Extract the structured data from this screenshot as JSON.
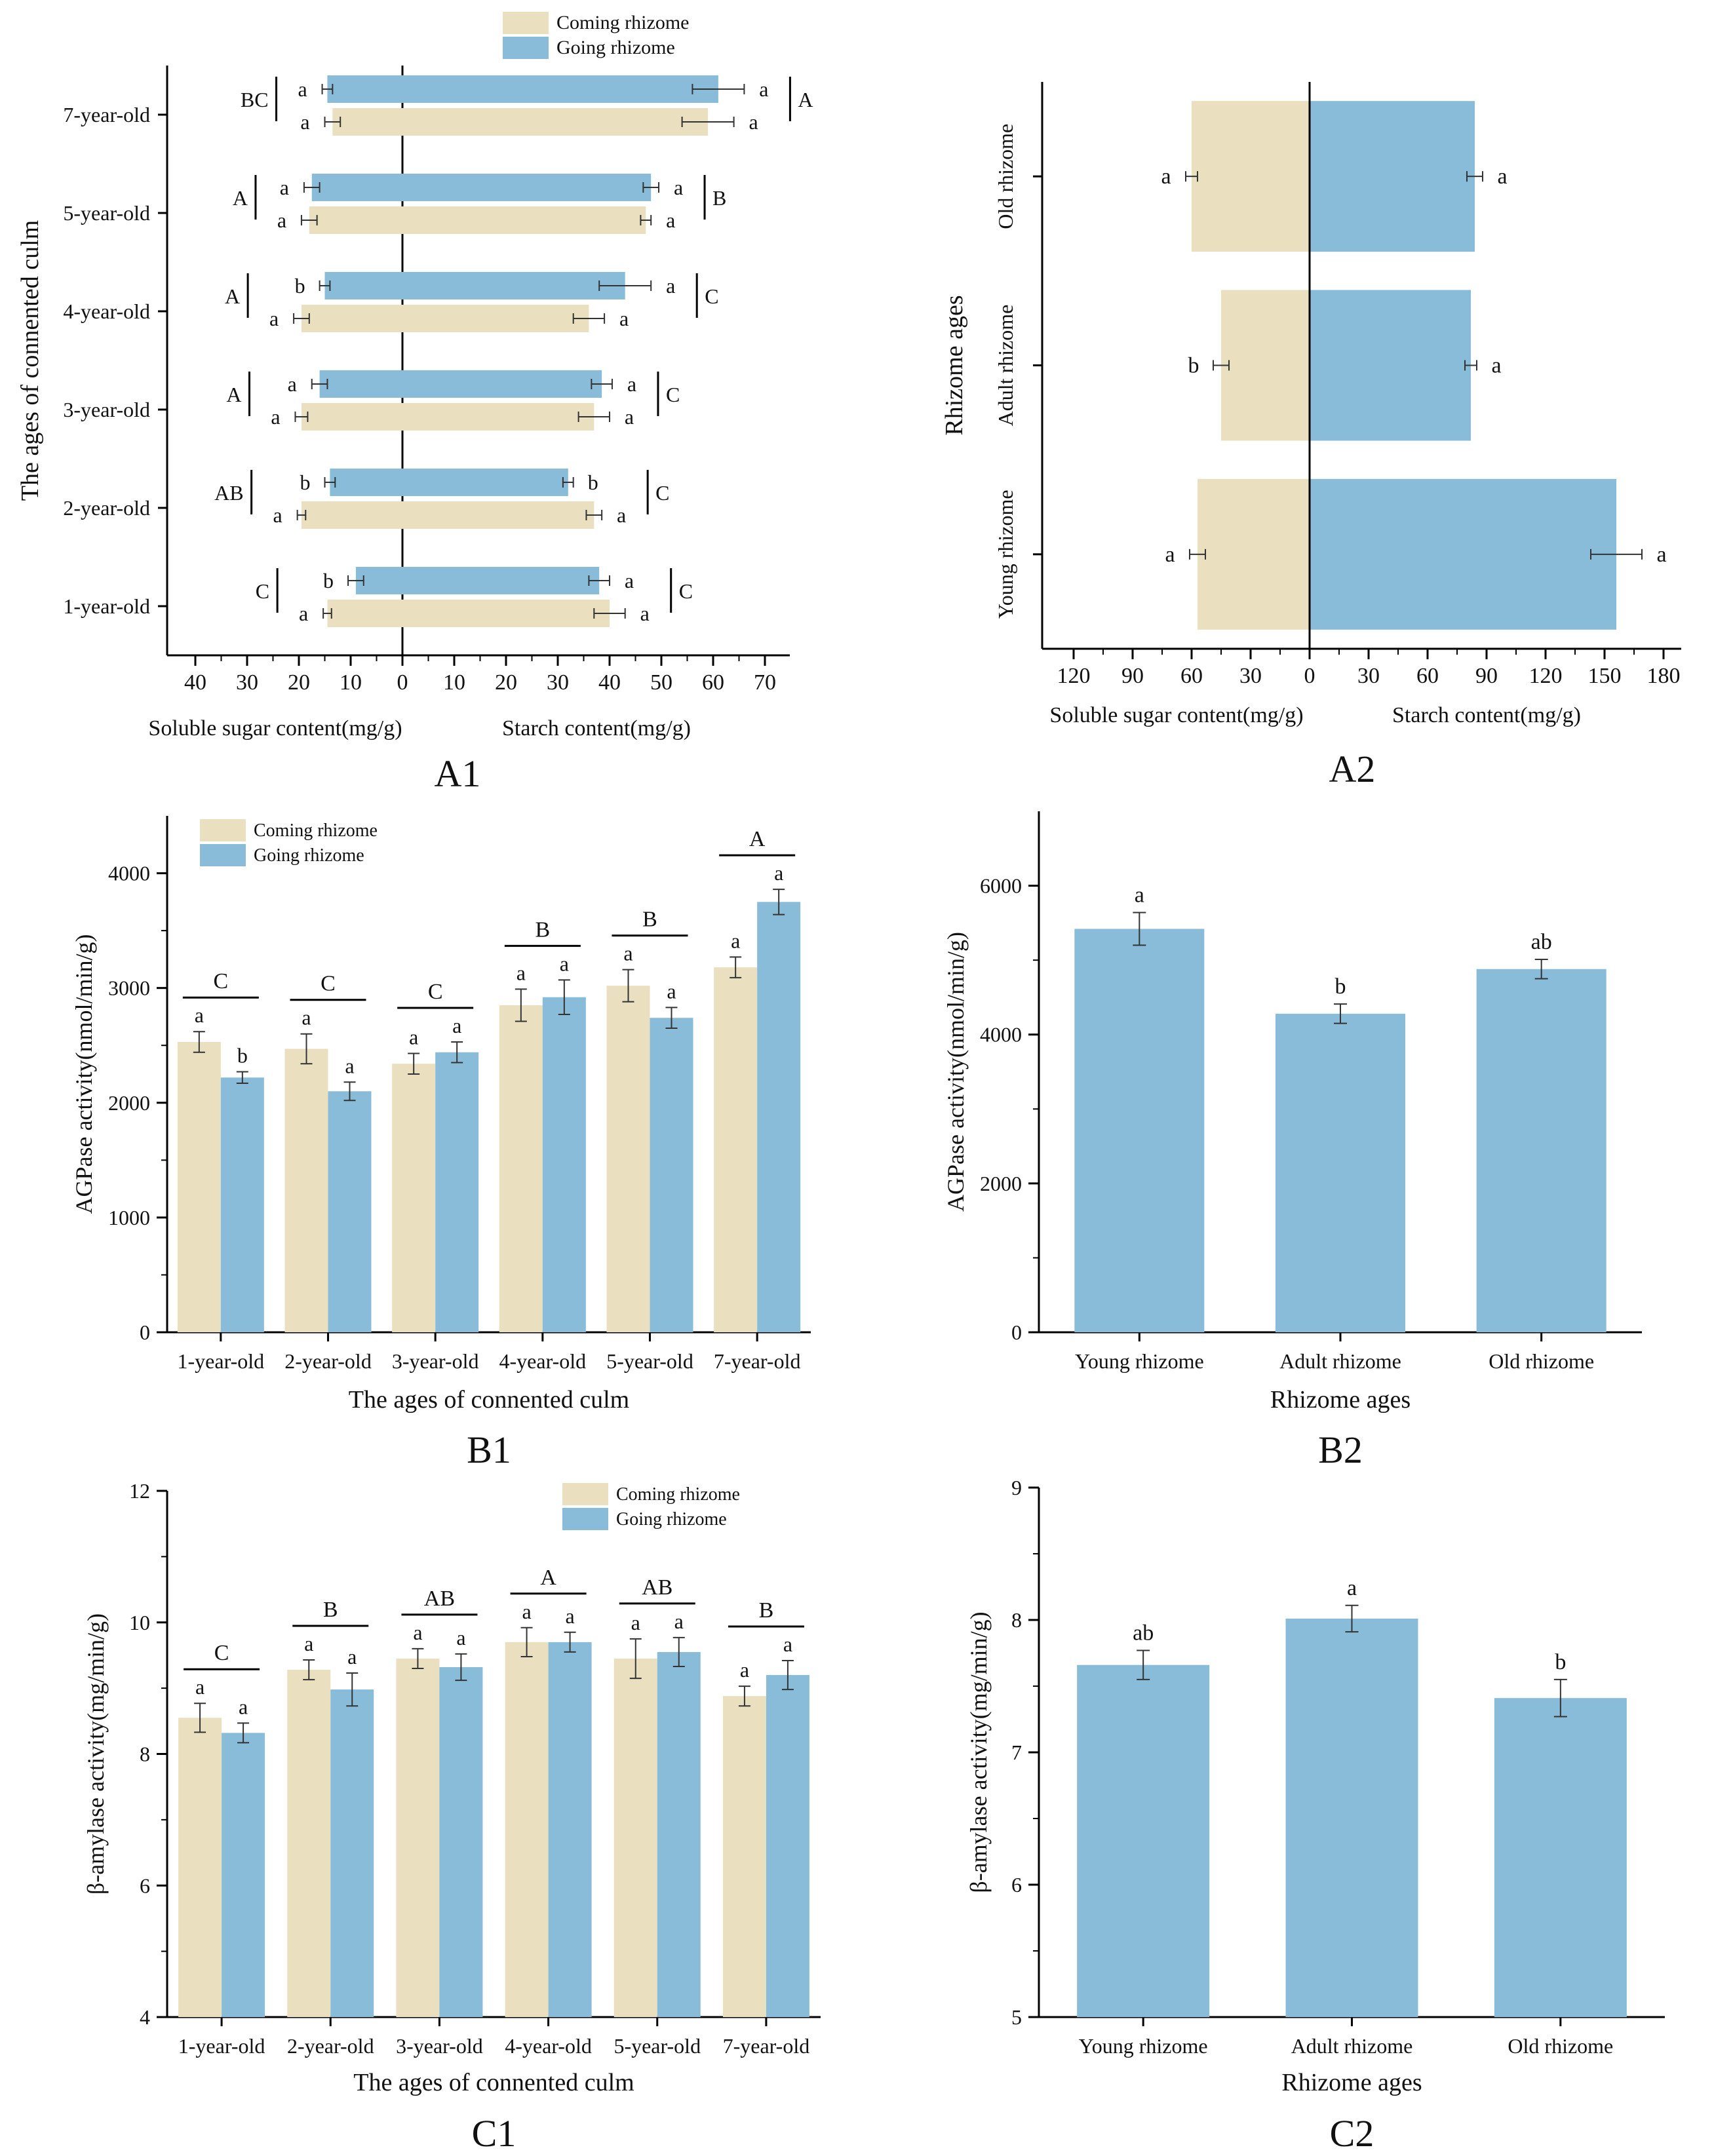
{
  "colors": {
    "coming": "#EADFBF",
    "going": "#89BCD9",
    "axis": "#000000"
  },
  "chart_data": [
    {
      "id": "A1",
      "panel_label": "A1",
      "type": "bar",
      "orientation": "butterfly-horizontal",
      "ylabel": "The ages of connented culm",
      "xlabel_left": "Soluble sugar content(mg/g)",
      "xlabel_right": "Starch content(mg/g)",
      "xlim": [
        -40,
        70
      ],
      "ticks": [
        "40",
        "30",
        "20",
        "10",
        "0",
        "10",
        "20",
        "30",
        "40",
        "50",
        "60",
        "70"
      ],
      "legend": [
        "Coming rhizome",
        "Going rhizome"
      ],
      "categories": [
        "7-year-old",
        "5-year-old",
        "4-year-old",
        "3-year-old",
        "2-year-old",
        "1-year-old"
      ],
      "series": [
        {
          "name": "Coming rhizome",
          "sugar": [
            13.5,
            18,
            19.5,
            19.5,
            19.5,
            14.5
          ],
          "sugar_err": [
            1.5,
            1.5,
            1.5,
            1.2,
            0.8,
            0.8
          ],
          "starch": [
            59,
            47,
            36,
            37,
            37,
            40
          ],
          "starch_err": [
            5,
            1,
            3,
            3,
            1.5,
            3
          ],
          "sugar_letters": [
            "a",
            "a",
            "a",
            "a",
            "a",
            "a"
          ],
          "starch_letters": [
            "a",
            "a",
            "a",
            "a",
            "a",
            "a"
          ]
        },
        {
          "name": "Going rhizome",
          "sugar": [
            14.5,
            17.5,
            15,
            16,
            14,
            9
          ],
          "sugar_err": [
            1,
            1.5,
            1,
            1.5,
            1,
            1.5
          ],
          "starch": [
            61,
            48,
            43,
            38.5,
            32,
            38
          ],
          "starch_err": [
            5,
            1.5,
            5,
            2,
            1,
            2
          ],
          "sugar_letters": [
            "a",
            "a",
            "b",
            "a",
            "b",
            "b"
          ],
          "starch_letters": [
            "a",
            "a",
            "a",
            "a",
            "b",
            "a"
          ]
        }
      ],
      "sugar_groups": [
        "BC",
        "A",
        "A",
        "A",
        "AB",
        "C"
      ],
      "starch_groups": [
        "A",
        "B",
        "C",
        "C",
        "C",
        "C"
      ]
    },
    {
      "id": "A2",
      "panel_label": "A2",
      "type": "bar",
      "orientation": "butterfly-horizontal",
      "ylabel": "Rhizome ages",
      "xlabel_left": "Soluble sugar content(mg/g)",
      "xlabel_right": "Starch content(mg/g)",
      "xlim": [
        -120,
        180
      ],
      "ticks": [
        "120",
        "90",
        "60",
        "30",
        "0",
        "30",
        "60",
        "90",
        "120",
        "150",
        "180"
      ],
      "categories": [
        "Old rhizome",
        "Adult rhizome",
        "Young rhizome"
      ],
      "sugar": [
        60,
        45,
        57
      ],
      "sugar_err": [
        3,
        4,
        4
      ],
      "starch": [
        84,
        82,
        156
      ],
      "starch_err": [
        4,
        3,
        13
      ],
      "sugar_letters": [
        "a",
        "b",
        "a"
      ],
      "starch_letters": [
        "a",
        "a",
        "a"
      ]
    },
    {
      "id": "B1",
      "panel_label": "B1",
      "type": "bar",
      "xlabel": "The ages of connented culm",
      "ylabel": "AGPase activity(nmol/min/g)",
      "ylim": [
        0,
        4500
      ],
      "yticks": [
        "0",
        "1000",
        "2000",
        "3000",
        "4000"
      ],
      "legend": [
        "Coming rhizome",
        "Going rhizome"
      ],
      "categories": [
        "1-year-old",
        "2-year-old",
        "3-year-old",
        "4-year-old",
        "5-year-old",
        "7-year-old"
      ],
      "series": [
        {
          "name": "Coming rhizome",
          "values": [
            2530,
            2470,
            2340,
            2850,
            3020,
            3180
          ],
          "errors": [
            90,
            130,
            90,
            140,
            140,
            90
          ],
          "letters": [
            "a",
            "a",
            "a",
            "a",
            "a",
            "a"
          ]
        },
        {
          "name": "Going rhizome",
          "values": [
            2220,
            2100,
            2440,
            2920,
            2740,
            3750
          ],
          "errors": [
            50,
            80,
            90,
            150,
            90,
            110
          ],
          "letters": [
            "b",
            "a",
            "a",
            "a",
            "a",
            "a"
          ]
        }
      ],
      "groups": [
        "C",
        "C",
        "C",
        "B",
        "B",
        "A"
      ]
    },
    {
      "id": "B2",
      "panel_label": "B2",
      "type": "bar",
      "xlabel": "Rhizome ages",
      "ylabel": "AGPase activity(nmol/min/g)",
      "ylim": [
        0,
        7000
      ],
      "yticks": [
        "0",
        "2000",
        "4000",
        "6000"
      ],
      "categories": [
        "Young rhizome",
        "Adult rhizome",
        "Old rhizome"
      ],
      "values": [
        5420,
        4280,
        4880
      ],
      "errors": [
        220,
        130,
        130
      ],
      "letters": [
        "a",
        "b",
        "ab"
      ]
    },
    {
      "id": "C1",
      "panel_label": "C1",
      "type": "bar",
      "xlabel": "The ages of connented culm",
      "ylabel": "β-amylase activity(mg/min/g)",
      "ylim": [
        4,
        12
      ],
      "yticks": [
        "4",
        "6",
        "8",
        "10",
        "12"
      ],
      "legend": [
        "Coming rhizome",
        "Going rhizome"
      ],
      "categories": [
        "1-year-old",
        "2-year-old",
        "3-year-old",
        "4-year-old",
        "5-year-old",
        "7-year-old"
      ],
      "series": [
        {
          "name": "Coming rhizome",
          "values": [
            8.55,
            9.28,
            9.45,
            9.7,
            9.45,
            8.88
          ],
          "errors": [
            0.22,
            0.15,
            0.15,
            0.22,
            0.3,
            0.15
          ],
          "letters": [
            "a",
            "a",
            "a",
            "a",
            "a",
            "a"
          ]
        },
        {
          "name": "Going rhizome",
          "values": [
            8.32,
            8.98,
            9.32,
            9.7,
            9.55,
            9.2
          ],
          "errors": [
            0.15,
            0.25,
            0.2,
            0.15,
            0.22,
            0.22
          ],
          "letters": [
            "a",
            "a",
            "a",
            "a",
            "a",
            "a"
          ]
        }
      ],
      "groups": [
        "C",
        "B",
        "AB",
        "A",
        "AB",
        "B"
      ]
    },
    {
      "id": "C2",
      "panel_label": "C2",
      "type": "bar",
      "xlabel": "Rhizome ages",
      "ylabel": "β-amylase activity(mg/min/g)",
      "ylim": [
        5,
        9
      ],
      "yticks": [
        "5",
        "6",
        "7",
        "8",
        "9"
      ],
      "categories": [
        "Young rhizome",
        "Adult rhizome",
        "Old rhizome"
      ],
      "values": [
        7.66,
        8.01,
        7.41
      ],
      "errors": [
        0.11,
        0.1,
        0.14
      ],
      "letters": [
        "ab",
        "a",
        "b"
      ]
    }
  ]
}
